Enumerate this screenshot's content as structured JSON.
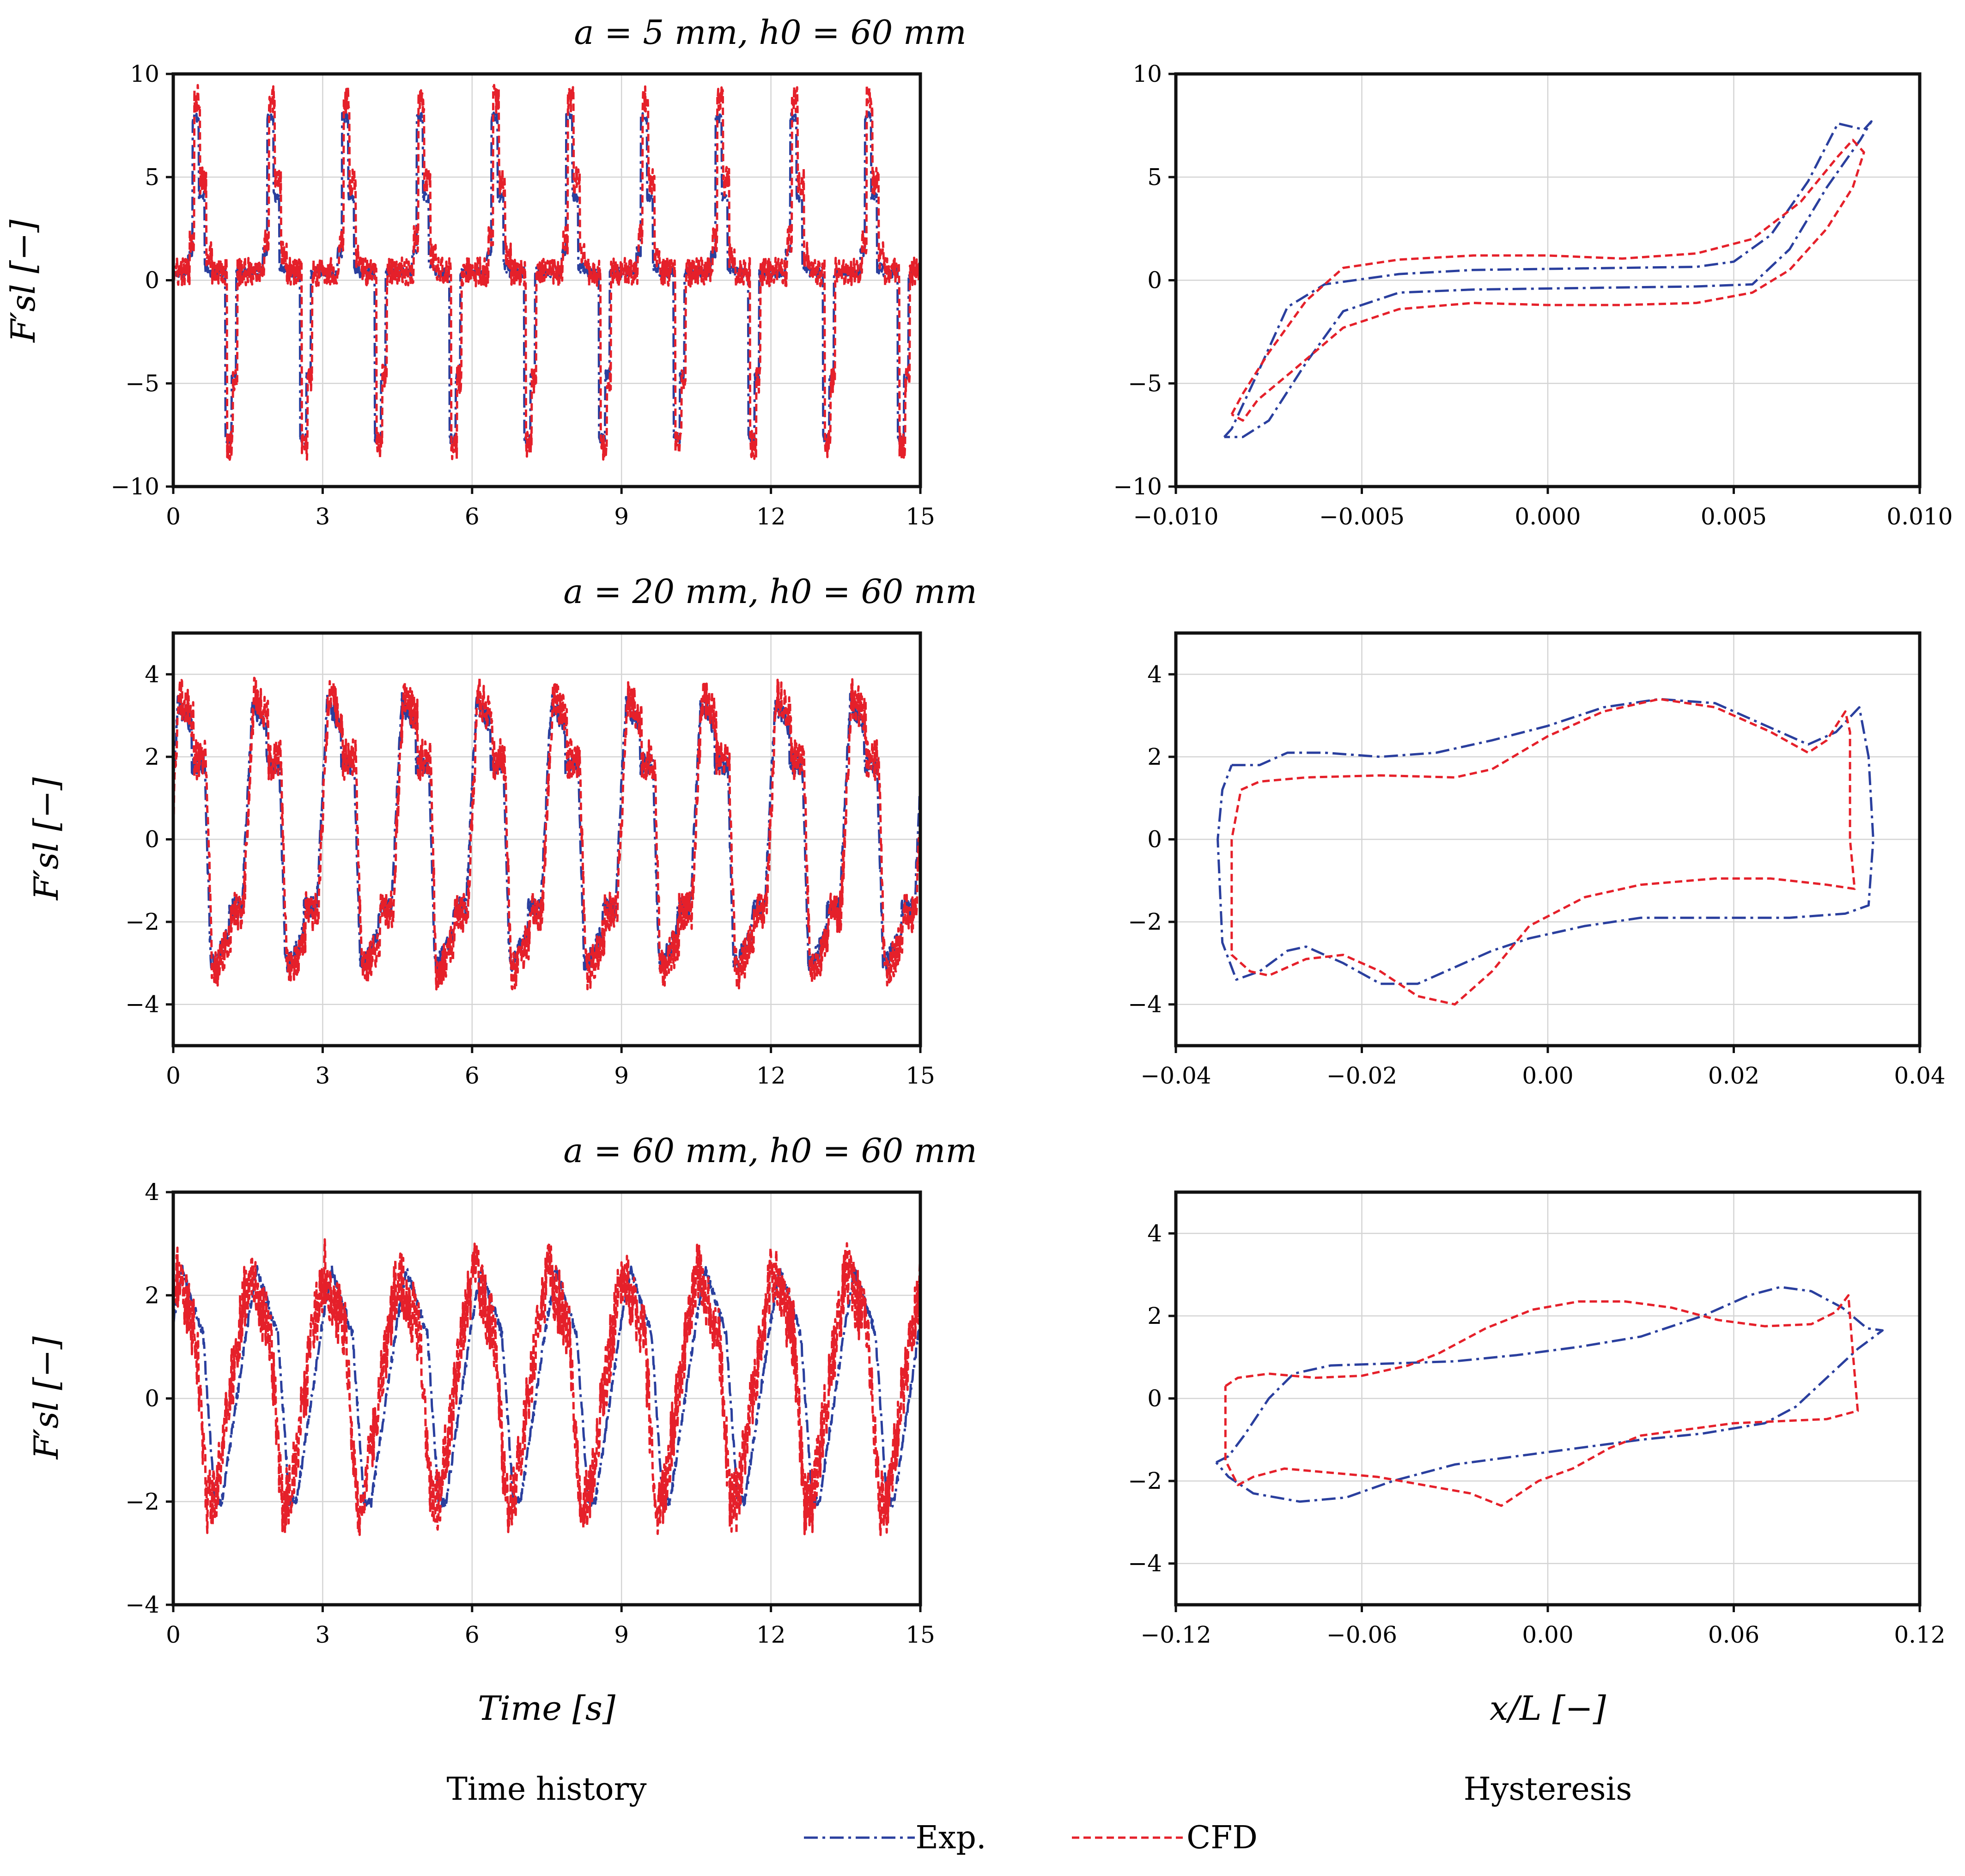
{
  "colors": {
    "exp": "#2a3f9e",
    "cfd": "#e5202a"
  },
  "column_captions": {
    "left": "Time history",
    "right": "Hysteresis"
  },
  "legend": {
    "exp": "Exp.",
    "cfd": "CFD"
  },
  "labels": {
    "ylabel": "F′sl [−]",
    "xlabel_left": "Time [s]",
    "xlabel_right": "x/L [−]"
  },
  "chart_data": [
    {
      "type": "line",
      "panel": "row1-time",
      "title": "a = 5 mm, h0 = 60 mm",
      "xlabel": "",
      "ylabel": "F′sl [−]",
      "xlim": [
        0,
        15
      ],
      "ylim": [
        -10,
        10
      ],
      "xticks": [
        "0",
        "3",
        "6",
        "9",
        "12",
        "15"
      ],
      "yticks": [
        "−10",
        "−5",
        "0",
        "5",
        "10"
      ],
      "grid": true,
      "series": [
        {
          "name": "Exp.",
          "kind": "time",
          "period": 1.5,
          "phase": 0.3,
          "amplitude": 7.7,
          "base": 0.2,
          "shape": "pulse",
          "noise": 0.25
        },
        {
          "name": "CFD",
          "kind": "time",
          "period": 1.5,
          "phase": 0.33,
          "amplitude": 8.0,
          "base": 0.8,
          "shape": "pulse",
          "noise": 0.7
        }
      ]
    },
    {
      "type": "line",
      "panel": "row1-hyst",
      "title": "",
      "xlabel": "",
      "ylabel": "",
      "xlim": [
        -0.01,
        0.01
      ],
      "ylim": [
        -10,
        10
      ],
      "xticks": [
        "−0.010",
        "−0.005",
        "0.000",
        "0.005",
        "0.010"
      ],
      "yticks": [
        "−10",
        "−5",
        "0",
        "5",
        "10"
      ],
      "grid": true,
      "series": [
        {
          "name": "Exp.",
          "kind": "loop",
          "points": [
            [
              -0.0087,
              -7.6
            ],
            [
              -0.0085,
              -7.2
            ],
            [
              -0.0078,
              -4.5
            ],
            [
              -0.007,
              -1.3
            ],
            [
              -0.006,
              -0.2
            ],
            [
              -0.004,
              0.3
            ],
            [
              -0.002,
              0.5
            ],
            [
              0.0,
              0.55
            ],
            [
              0.002,
              0.6
            ],
            [
              0.004,
              0.65
            ],
            [
              0.005,
              0.9
            ],
            [
              0.006,
              2.2
            ],
            [
              0.007,
              4.8
            ],
            [
              0.0078,
              7.6
            ],
            [
              0.0085,
              7.3
            ],
            [
              0.0087,
              7.7
            ],
            [
              0.0084,
              6.8
            ],
            [
              0.0075,
              4.5
            ],
            [
              0.0065,
              1.5
            ],
            [
              0.0055,
              -0.2
            ],
            [
              0.004,
              -0.3
            ],
            [
              0.002,
              -0.35
            ],
            [
              0.0,
              -0.4
            ],
            [
              -0.002,
              -0.45
            ],
            [
              -0.004,
              -0.6
            ],
            [
              -0.0055,
              -1.5
            ],
            [
              -0.0065,
              -4.0
            ],
            [
              -0.0075,
              -6.8
            ],
            [
              -0.0082,
              -7.6
            ],
            [
              -0.0087,
              -7.6
            ]
          ]
        },
        {
          "name": "CFD",
          "kind": "loop",
          "points": [
            [
              -0.0085,
              -6.5
            ],
            [
              -0.0082,
              -5.5
            ],
            [
              -0.0075,
              -3.5
            ],
            [
              -0.0065,
              -1.0
            ],
            [
              -0.0055,
              0.6
            ],
            [
              -0.004,
              1.0
            ],
            [
              -0.002,
              1.2
            ],
            [
              0.0,
              1.2
            ],
            [
              0.002,
              1.05
            ],
            [
              0.004,
              1.3
            ],
            [
              0.0055,
              2.0
            ],
            [
              0.0068,
              3.8
            ],
            [
              0.0078,
              6.0
            ],
            [
              0.0082,
              6.8
            ],
            [
              0.0085,
              6.2
            ],
            [
              0.0082,
              4.5
            ],
            [
              0.0075,
              2.5
            ],
            [
              0.0065,
              0.5
            ],
            [
              0.0055,
              -0.6
            ],
            [
              0.004,
              -1.1
            ],
            [
              0.002,
              -1.2
            ],
            [
              0.0,
              -1.2
            ],
            [
              -0.002,
              -1.1
            ],
            [
              -0.004,
              -1.4
            ],
            [
              -0.0055,
              -2.3
            ],
            [
              -0.0068,
              -4.3
            ],
            [
              -0.0078,
              -5.8
            ],
            [
              -0.0082,
              -6.8
            ],
            [
              -0.0085,
              -6.5
            ]
          ]
        }
      ]
    },
    {
      "type": "line",
      "panel": "row2-time",
      "title": "a = 20 mm, h0 = 60 mm",
      "xlabel": "",
      "ylabel": "F′sl [−]",
      "xlim": [
        0,
        15
      ],
      "ylim": [
        -5,
        5
      ],
      "xticks": [
        "0",
        "3",
        "6",
        "9",
        "12",
        "15"
      ],
      "yticks": [
        "−4",
        "−2",
        "0",
        "2",
        "4"
      ],
      "ytick_values": [
        -4,
        -2,
        0,
        2,
        4
      ],
      "grid": true,
      "series": [
        {
          "name": "Exp.",
          "kind": "time",
          "period": 1.5,
          "phase": 0.0,
          "amplitude": 3.3,
          "base": 0,
          "shape": "square",
          "noise": 0.25
        },
        {
          "name": "CFD",
          "kind": "time",
          "period": 1.5,
          "phase": 0.03,
          "amplitude": 3.5,
          "base": 0,
          "shape": "square",
          "noise": 0.5
        }
      ]
    },
    {
      "type": "line",
      "panel": "row2-hyst",
      "title": "",
      "xlabel": "",
      "ylabel": "",
      "xlim": [
        -0.04,
        0.04
      ],
      "ylim": [
        -5,
        5
      ],
      "xticks": [
        "−0.04",
        "−0.02",
        "0.00",
        "0.02",
        "0.04"
      ],
      "yticks": [
        "−4",
        "−2",
        "0",
        "2",
        "4"
      ],
      "ytick_values": [
        -4,
        -2,
        0,
        2,
        4
      ],
      "grid": true,
      "series": [
        {
          "name": "Exp.",
          "kind": "loop",
          "points": [
            [
              -0.034,
              1.8
            ],
            [
              -0.031,
              1.8
            ],
            [
              -0.028,
              2.1
            ],
            [
              -0.024,
              2.1
            ],
            [
              -0.018,
              2.0
            ],
            [
              -0.012,
              2.1
            ],
            [
              -0.006,
              2.4
            ],
            [
              0.0,
              2.75
            ],
            [
              0.006,
              3.2
            ],
            [
              0.012,
              3.4
            ],
            [
              0.018,
              3.3
            ],
            [
              0.024,
              2.7
            ],
            [
              0.028,
              2.3
            ],
            [
              0.031,
              2.6
            ],
            [
              0.0335,
              3.2
            ],
            [
              0.0345,
              2.0
            ],
            [
              0.035,
              0.0
            ],
            [
              0.0345,
              -1.6
            ],
            [
              0.032,
              -1.8
            ],
            [
              0.026,
              -1.9
            ],
            [
              0.018,
              -1.9
            ],
            [
              0.01,
              -1.9
            ],
            [
              0.004,
              -2.1
            ],
            [
              -0.002,
              -2.4
            ],
            [
              -0.006,
              -2.7
            ],
            [
              -0.01,
              -3.1
            ],
            [
              -0.014,
              -3.5
            ],
            [
              -0.018,
              -3.5
            ],
            [
              -0.022,
              -3.0
            ],
            [
              -0.026,
              -2.6
            ],
            [
              -0.028,
              -2.7
            ],
            [
              -0.031,
              -3.2
            ],
            [
              -0.0335,
              -3.4
            ],
            [
              -0.035,
              -2.5
            ],
            [
              -0.0355,
              0.0
            ],
            [
              -0.035,
              1.2
            ],
            [
              -0.034,
              1.8
            ]
          ]
        },
        {
          "name": "CFD",
          "kind": "loop",
          "points": [
            [
              -0.033,
              1.2
            ],
            [
              -0.031,
              1.4
            ],
            [
              -0.026,
              1.5
            ],
            [
              -0.018,
              1.55
            ],
            [
              -0.01,
              1.5
            ],
            [
              -0.006,
              1.7
            ],
            [
              0.0,
              2.5
            ],
            [
              0.006,
              3.1
            ],
            [
              0.012,
              3.4
            ],
            [
              0.018,
              3.2
            ],
            [
              0.024,
              2.6
            ],
            [
              0.028,
              2.1
            ],
            [
              0.03,
              2.4
            ],
            [
              0.032,
              3.1
            ],
            [
              0.0325,
              2.6
            ],
            [
              0.0325,
              0.0
            ],
            [
              0.033,
              -1.2
            ],
            [
              0.03,
              -1.1
            ],
            [
              0.024,
              -0.95
            ],
            [
              0.018,
              -0.95
            ],
            [
              0.01,
              -1.1
            ],
            [
              0.004,
              -1.4
            ],
            [
              -0.002,
              -2.1
            ],
            [
              -0.006,
              -3.2
            ],
            [
              -0.01,
              -4.0
            ],
            [
              -0.014,
              -3.8
            ],
            [
              -0.018,
              -3.2
            ],
            [
              -0.022,
              -2.8
            ],
            [
              -0.026,
              -2.9
            ],
            [
              -0.03,
              -3.3
            ],
            [
              -0.032,
              -3.2
            ],
            [
              -0.034,
              -2.8
            ],
            [
              -0.034,
              0.0
            ],
            [
              -0.033,
              1.2
            ]
          ]
        }
      ]
    },
    {
      "type": "line",
      "panel": "row3-time",
      "title": "a = 60 mm, h0 = 60 mm",
      "xlabel": "Time [s]",
      "ylabel": "F′sl [−]",
      "xlim": [
        0,
        15
      ],
      "ylim": [
        -4,
        4
      ],
      "xticks": [
        "0",
        "3",
        "6",
        "9",
        "12",
        "15"
      ],
      "yticks": [
        "−4",
        "−2",
        "0",
        "2",
        "4"
      ],
      "ytick_values": [
        -4,
        -2,
        0,
        2,
        4
      ],
      "grid": true,
      "series": [
        {
          "name": "Exp.",
          "kind": "time",
          "period": 1.5,
          "phase": 0.0,
          "amplitude": 2.5,
          "base": 0,
          "shape": "saw",
          "noise": 0.1
        },
        {
          "name": "CFD",
          "kind": "time",
          "period": 1.5,
          "phase": -0.15,
          "amplitude": 2.5,
          "base": 0,
          "shape": "saw",
          "noise": 0.65
        }
      ]
    },
    {
      "type": "line",
      "panel": "row3-hyst",
      "title": "",
      "xlabel": "x/L [−]",
      "ylabel": "",
      "xlim": [
        -0.12,
        0.12
      ],
      "ylim": [
        -5,
        5
      ],
      "xticks": [
        "−0.12",
        "−0.06",
        "0.00",
        "0.06",
        "0.12"
      ],
      "yticks": [
        "−4",
        "−2",
        "0",
        "2",
        "4"
      ],
      "ytick_values": [
        -4,
        -2,
        0,
        2,
        4
      ],
      "grid": true,
      "series": [
        {
          "name": "Exp.",
          "kind": "loop",
          "points": [
            [
              -0.107,
              -1.55
            ],
            [
              -0.103,
              -1.4
            ],
            [
              -0.098,
              -0.9
            ],
            [
              -0.09,
              0.0
            ],
            [
              -0.082,
              0.6
            ],
            [
              -0.07,
              0.8
            ],
            [
              -0.05,
              0.85
            ],
            [
              -0.03,
              0.9
            ],
            [
              -0.01,
              1.05
            ],
            [
              0.01,
              1.25
            ],
            [
              0.03,
              1.5
            ],
            [
              0.05,
              2.0
            ],
            [
              0.065,
              2.5
            ],
            [
              0.075,
              2.7
            ],
            [
              0.085,
              2.6
            ],
            [
              0.095,
              2.2
            ],
            [
              0.103,
              1.7
            ],
            [
              0.108,
              1.65
            ],
            [
              0.1,
              1.2
            ],
            [
              0.09,
              0.5
            ],
            [
              0.08,
              -0.2
            ],
            [
              0.07,
              -0.6
            ],
            [
              0.05,
              -0.85
            ],
            [
              0.03,
              -1.0
            ],
            [
              0.01,
              -1.2
            ],
            [
              -0.01,
              -1.4
            ],
            [
              -0.03,
              -1.6
            ],
            [
              -0.05,
              -2.0
            ],
            [
              -0.065,
              -2.4
            ],
            [
              -0.08,
              -2.5
            ],
            [
              -0.095,
              -2.3
            ],
            [
              -0.103,
              -1.9
            ],
            [
              -0.107,
              -1.55
            ]
          ]
        },
        {
          "name": "CFD",
          "kind": "loop",
          "points": [
            [
              -0.104,
              0.3
            ],
            [
              -0.1,
              0.5
            ],
            [
              -0.09,
              0.6
            ],
            [
              -0.075,
              0.5
            ],
            [
              -0.06,
              0.55
            ],
            [
              -0.045,
              0.8
            ],
            [
              -0.035,
              1.1
            ],
            [
              -0.02,
              1.7
            ],
            [
              -0.005,
              2.15
            ],
            [
              0.01,
              2.35
            ],
            [
              0.025,
              2.35
            ],
            [
              0.04,
              2.2
            ],
            [
              0.055,
              1.9
            ],
            [
              0.07,
              1.75
            ],
            [
              0.085,
              1.8
            ],
            [
              0.093,
              2.1
            ],
            [
              0.097,
              2.5
            ],
            [
              0.098,
              1.5
            ],
            [
              0.1,
              -0.3
            ],
            [
              0.09,
              -0.5
            ],
            [
              0.075,
              -0.55
            ],
            [
              0.06,
              -0.6
            ],
            [
              0.045,
              -0.75
            ],
            [
              0.03,
              -0.9
            ],
            [
              0.02,
              -1.2
            ],
            [
              0.008,
              -1.7
            ],
            [
              -0.003,
              -2.0
            ],
            [
              -0.01,
              -2.35
            ],
            [
              -0.015,
              -2.6
            ],
            [
              -0.025,
              -2.3
            ],
            [
              -0.04,
              -2.1
            ],
            [
              -0.055,
              -1.9
            ],
            [
              -0.07,
              -1.8
            ],
            [
              -0.085,
              -1.7
            ],
            [
              -0.095,
              -1.9
            ],
            [
              -0.1,
              -2.1
            ],
            [
              -0.104,
              -1.5
            ],
            [
              -0.104,
              0.3
            ]
          ]
        }
      ]
    }
  ]
}
